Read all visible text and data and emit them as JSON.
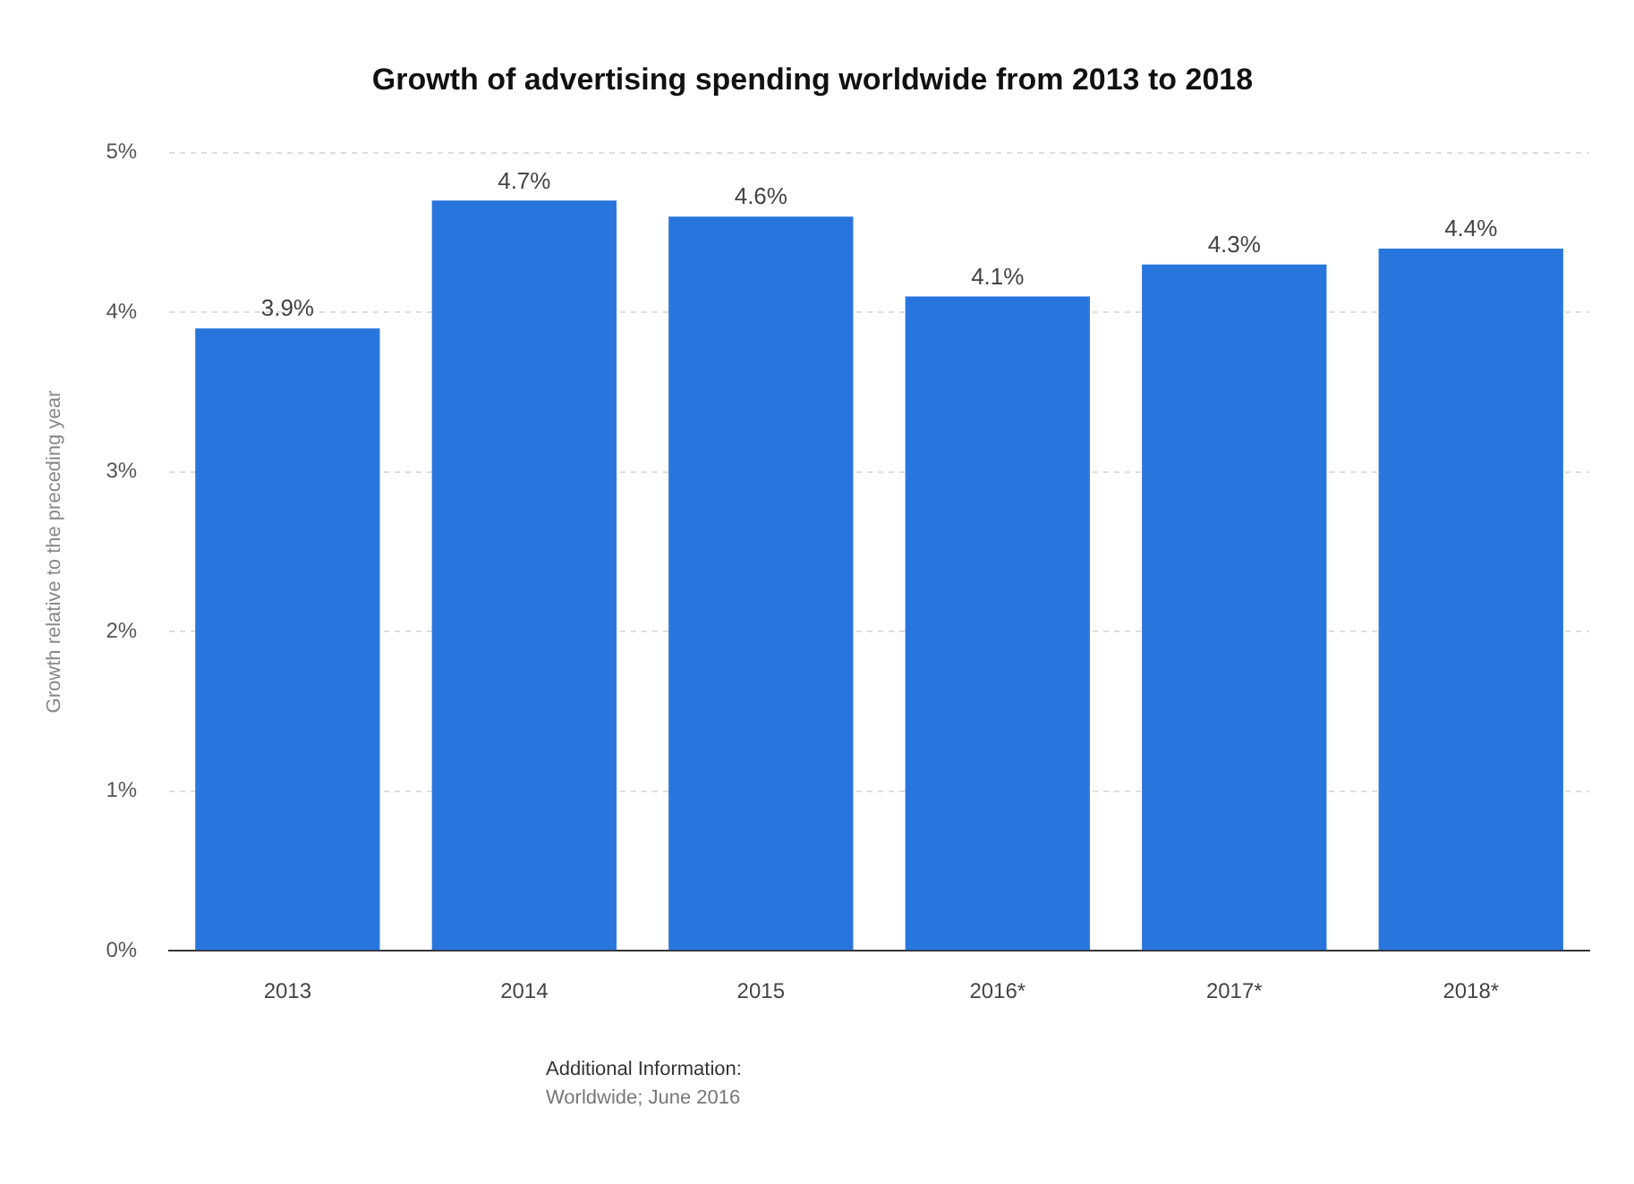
{
  "chart_data": {
    "type": "bar",
    "title": "Growth of advertising spending worldwide from 2013 to 2018",
    "ylabel": "Growth relative to the preceding year",
    "categories": [
      "2013",
      "2014",
      "2015",
      "2016*",
      "2017*",
      "2018*"
    ],
    "values": [
      3.9,
      4.7,
      4.6,
      4.1,
      4.3,
      4.4
    ],
    "value_labels": [
      "3.9%",
      "4.7%",
      "4.6%",
      "4.1%",
      "4.3%",
      "4.4%"
    ],
    "color": "#2876dd",
    "ylim": [
      0,
      5
    ],
    "yticks": [
      {
        "value": 0,
        "label": "0%"
      },
      {
        "value": 1,
        "label": "1%"
      },
      {
        "value": 2,
        "label": "2%"
      },
      {
        "value": 3,
        "label": "3%"
      },
      {
        "value": 4,
        "label": "4%"
      },
      {
        "value": 5,
        "label": "5%"
      }
    ],
    "grid": "y",
    "annotations": [
      "Additional Information:",
      "Worldwide; June 2016"
    ]
  }
}
